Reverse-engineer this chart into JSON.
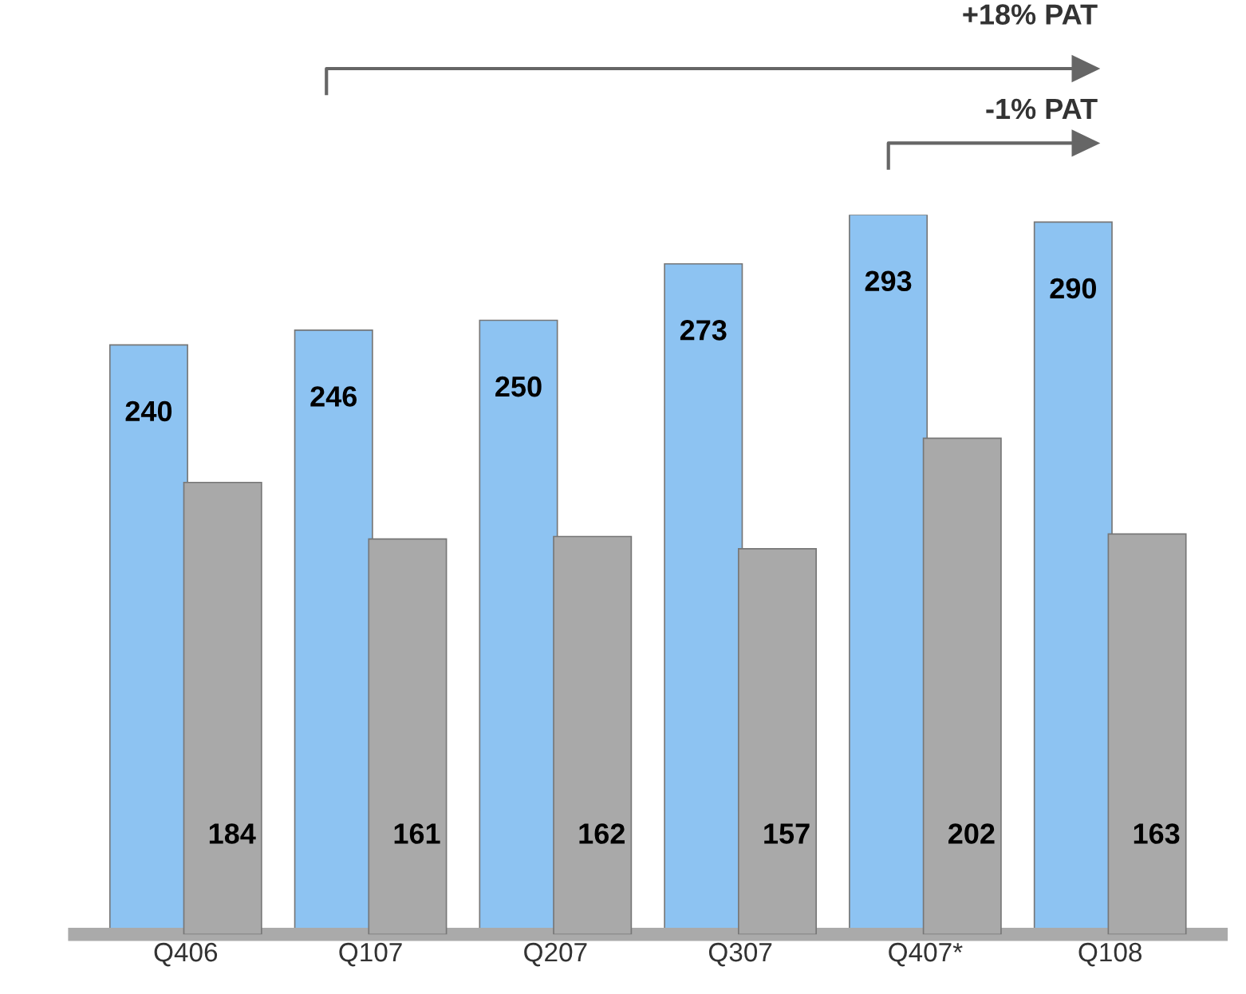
{
  "chart_data": {
    "type": "bar",
    "categories": [
      "Q406",
      "Q107",
      "Q207",
      "Q307",
      "Q407*",
      "Q108"
    ],
    "series": [
      {
        "color": "#8dc3f2",
        "values": [
          240,
          246,
          250,
          273,
          293,
          290
        ]
      },
      {
        "color": "#a9a9a9",
        "values": [
          184,
          161,
          162,
          157,
          202,
          163
        ]
      }
    ],
    "data_labels": true,
    "tick_labels": "x",
    "grid": false,
    "annotations": [
      "+18% PAT",
      "-1% PAT"
    ]
  }
}
